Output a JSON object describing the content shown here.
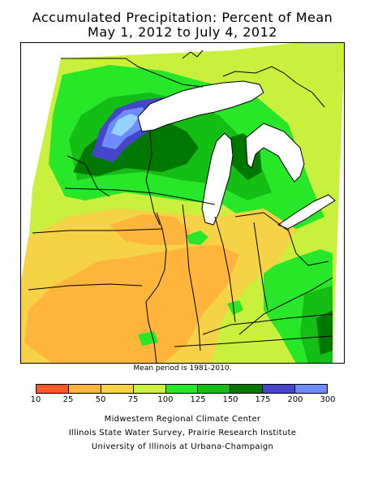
{
  "title": {
    "line1": "Accumulated Precipitation: Percent of Mean",
    "line2": "May 1, 2012 to July 4, 2012"
  },
  "map_note": "Mean period is 1981-2010.",
  "legend": {
    "ticks": [
      "10",
      "25",
      "50",
      "75",
      "100",
      "125",
      "150",
      "175",
      "200",
      "300"
    ],
    "colors": [
      "#ff5a28",
      "#ffb43c",
      "#f5d246",
      "#c8f03c",
      "#28e628",
      "#14be14",
      "#007800",
      "#4646c8",
      "#6e8cff",
      "#96d2ff"
    ]
  },
  "credits": [
    "Midwestern Regional Climate Center",
    "Illinois State Water Survey, Prairie Research Institute",
    "University of Illinois at Urbana-Champaign"
  ]
}
